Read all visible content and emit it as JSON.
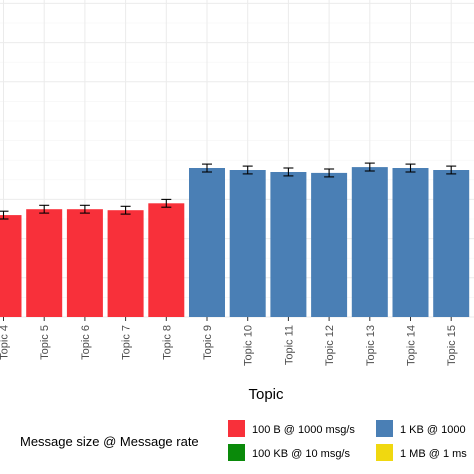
{
  "chart_data": {
    "type": "bar",
    "title": "",
    "xlabel": "Topic",
    "ylabel": "",
    "grid": true,
    "legend_position": "bottom",
    "categories": [
      "Topic 4",
      "Topic 5",
      "Topic 6",
      "Topic 7",
      "Topic 8",
      "Topic 9",
      "Topic 10",
      "Topic 11",
      "Topic 12",
      "Topic 13",
      "Topic 14",
      "Topic 15"
    ],
    "values": [
      0.52,
      0.55,
      0.55,
      0.545,
      0.58,
      0.76,
      0.75,
      0.74,
      0.735,
      0.765,
      0.76,
      0.75
    ],
    "errors": [
      0.02,
      0.02,
      0.02,
      0.02,
      0.02,
      0.02,
      0.02,
      0.02,
      0.02,
      0.02,
      0.02,
      0.02
    ],
    "groups": [
      "100 B @ 1000 msg/s",
      "100 B @ 1000 msg/s",
      "100 B @ 1000 msg/s",
      "100 B @ 1000 msg/s",
      "100 B @ 1000 msg/s",
      "1 KB @ 1000",
      "1 KB @ 1000",
      "1 KB @ 1000",
      "1 KB @ 1000",
      "1 KB @ 1000",
      "1 KB @ 1000",
      "1 KB @ 1000"
    ],
    "ylim": [
      0,
      2.6
    ],
    "legend": {
      "title": "Message size @ Message rate",
      "entries": [
        {
          "label": "100 B @ 1000 msg/s",
          "color": "#f8303a"
        },
        {
          "label": "1 KB @ 1000",
          "color": "#4a7fb5"
        },
        {
          "label": "100 KB @ 10 msg/s",
          "color": "#0a8a0a"
        },
        {
          "label": "1 MB @ 1 ms",
          "color": "#f0d810"
        }
      ]
    }
  }
}
